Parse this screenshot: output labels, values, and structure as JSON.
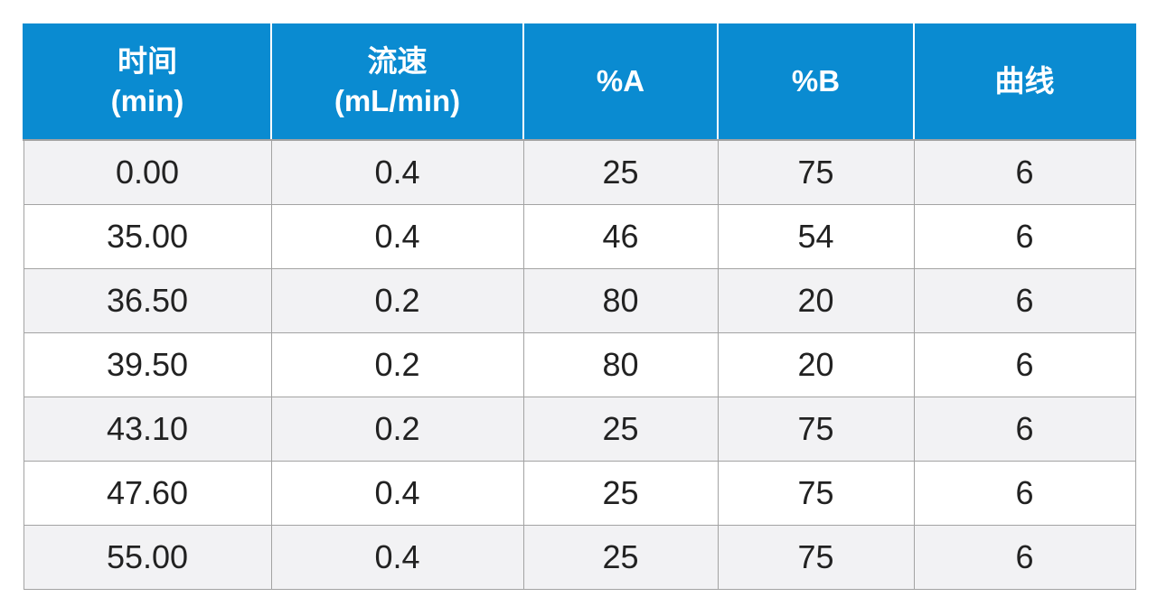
{
  "table": {
    "header": [
      [
        "时间",
        "(min)"
      ],
      [
        "流速",
        "(mL/min)"
      ],
      [
        "%A"
      ],
      [
        "%B"
      ],
      [
        "曲线"
      ]
    ],
    "rows": [
      [
        "0.00",
        "0.4",
        "25",
        "75",
        "6"
      ],
      [
        "35.00",
        "0.4",
        "46",
        "54",
        "6"
      ],
      [
        "36.50",
        "0.2",
        "80",
        "20",
        "6"
      ],
      [
        "39.50",
        "0.2",
        "80",
        "20",
        "6"
      ],
      [
        "43.10",
        "0.2",
        "25",
        "75",
        "6"
      ],
      [
        "47.60",
        "0.4",
        "25",
        "75",
        "6"
      ],
      [
        "55.00",
        "0.4",
        "25",
        "75",
        "6"
      ]
    ]
  }
}
